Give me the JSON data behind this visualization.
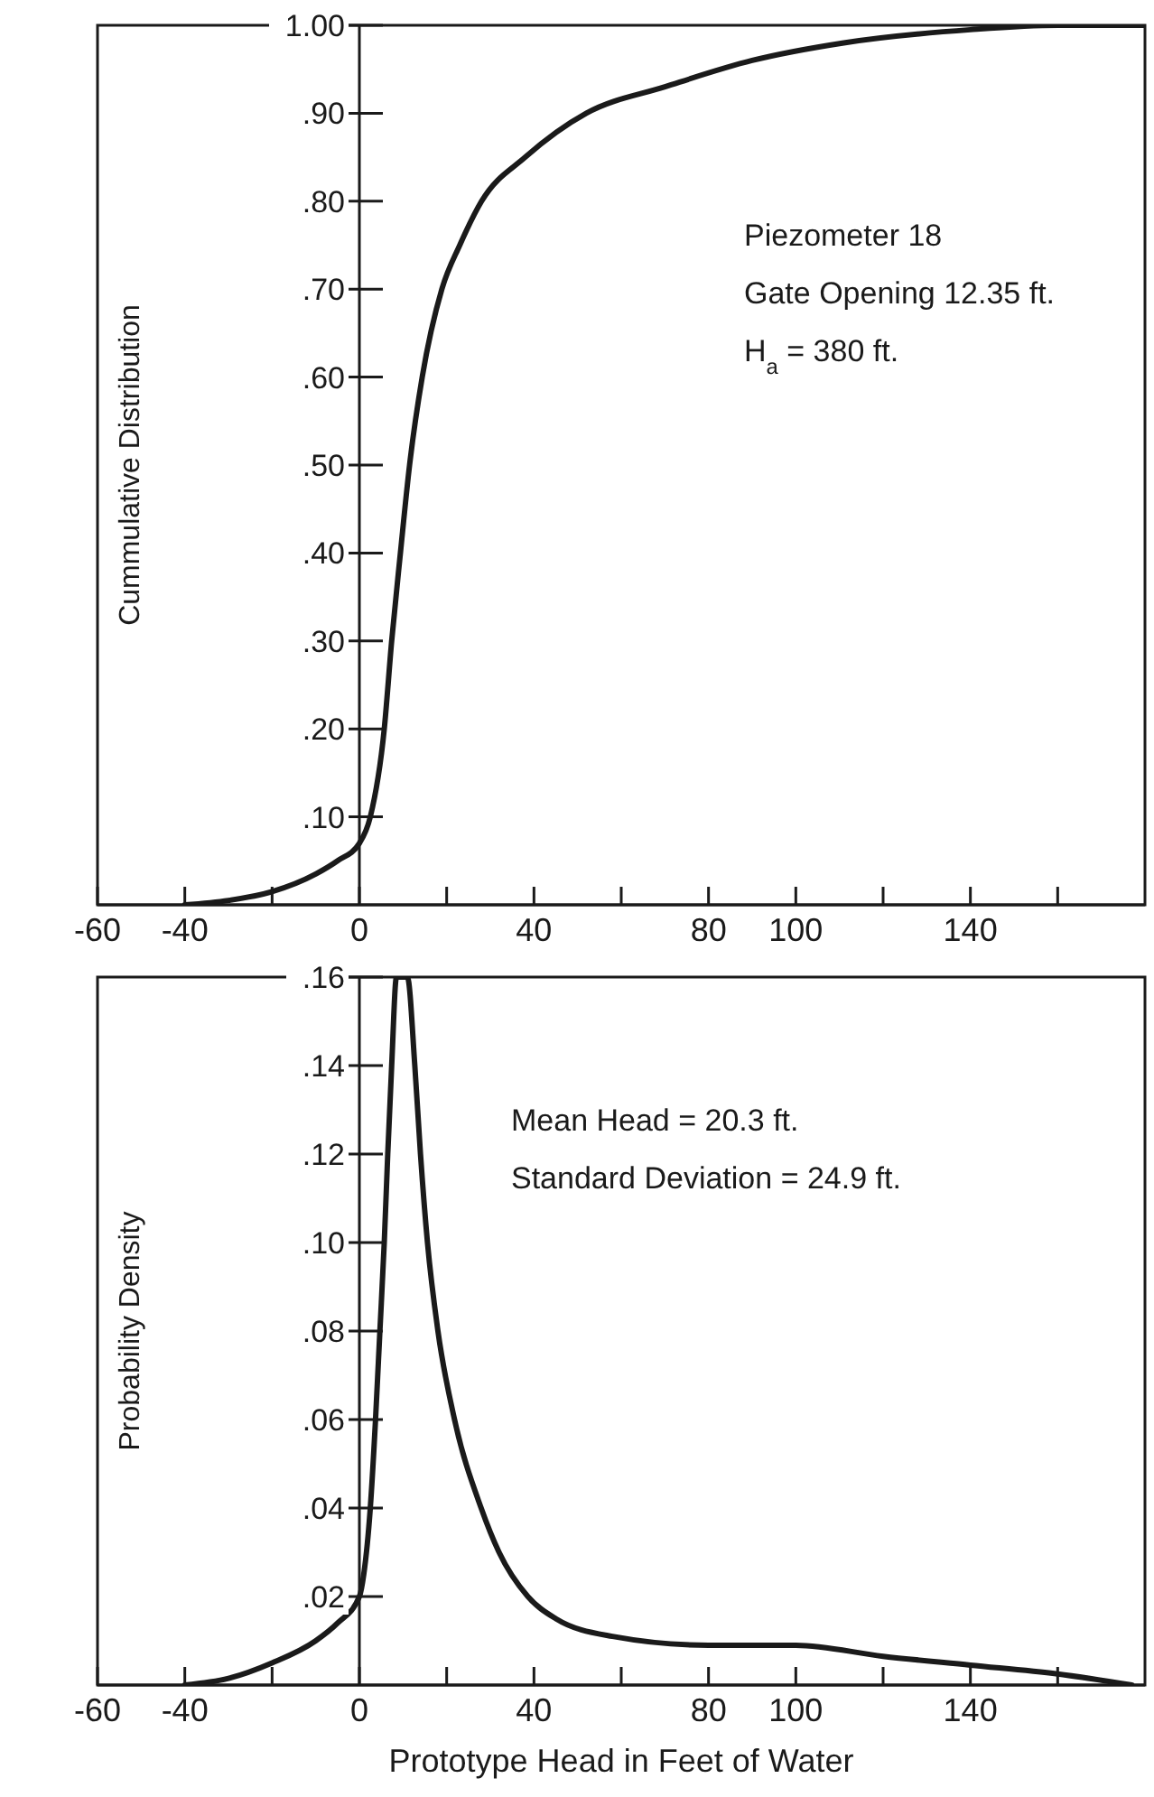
{
  "chart_data": [
    {
      "type": "line",
      "ylabel": "Cummulative Distribution",
      "color": "#1a1a1a",
      "annotations": [
        "Piezometer 18",
        "Gate Opening 12.35 ft.",
        "H$_{a}$ = 380 ft."
      ],
      "xlim": [
        -60,
        180
      ],
      "xticks": [
        -60,
        -40,
        {
          "value": -20,
          "label": null
        },
        0,
        {
          "value": 20,
          "label": null
        },
        40,
        {
          "value": 60,
          "label": null
        },
        80,
        100,
        {
          "value": 120,
          "label": null
        },
        140,
        {
          "value": 160,
          "label": null
        }
      ],
      "ylim": [
        0,
        1
      ],
      "yticks": [
        {
          "value": 0.1,
          "label": ".10"
        },
        {
          "value": 0.2,
          "label": ".20"
        },
        {
          "value": 0.3,
          "label": ".30"
        },
        {
          "value": 0.4,
          "label": ".40"
        },
        {
          "value": 0.5,
          "label": ".50"
        },
        {
          "value": 0.6,
          "label": ".60"
        },
        {
          "value": 0.7,
          "label": ".70"
        },
        {
          "value": 0.8,
          "label": ".80"
        },
        {
          "value": 0.9,
          "label": ".90"
        },
        {
          "value": 1,
          "label": "1.00"
        }
      ],
      "x": [
        -40,
        -30,
        -20,
        -10,
        -5,
        0,
        2.5,
        5.7,
        7.4,
        9.4,
        11.5,
        14.4,
        18.9,
        23,
        28,
        38,
        52,
        70,
        90,
        111,
        140,
        160,
        180
      ],
      "values": [
        0,
        0.005,
        0.015,
        0.035,
        0.05,
        0.07,
        0.1,
        0.2,
        0.3,
        0.4,
        0.5,
        0.6,
        0.7,
        0.75,
        0.8,
        0.85,
        0.9,
        0.93,
        0.96,
        0.98,
        0.995,
        1,
        1
      ]
    },
    {
      "type": "line",
      "ylabel": "Probability Density",
      "xlabel": "Prototype Head in Feet of Water",
      "color": "#1a1a1a",
      "annotations": [
        "Mean Head = 20.3 ft.",
        "Standard Deviation = 24.9 ft."
      ],
      "xlim": [
        -60,
        180
      ],
      "xticks": [
        -60,
        -40,
        {
          "value": -20,
          "label": null
        },
        0,
        {
          "value": 20,
          "label": null
        },
        40,
        {
          "value": 60,
          "label": null
        },
        80,
        100,
        {
          "value": 120,
          "label": null
        },
        140,
        {
          "value": 160,
          "label": null
        }
      ],
      "ylim": [
        0,
        0.16
      ],
      "yticks": [
        {
          "value": 0.02,
          "label": ".02"
        },
        {
          "value": 0.04,
          "label": ".04"
        },
        {
          "value": 0.06,
          "label": ".06"
        },
        {
          "value": 0.08,
          "label": ".08"
        },
        {
          "value": 0.1,
          "label": ".10"
        },
        {
          "value": 0.12,
          "label": ".12"
        },
        {
          "value": 0.14,
          "label": ".14"
        },
        {
          "value": 0.16,
          "label": ".16"
        }
      ],
      "x": [
        -40,
        -30,
        -20,
        -10,
        -5,
        0,
        1,
        2.5,
        3.7,
        4.7,
        5.7,
        6.5,
        7.4,
        8.5,
        11,
        12.7,
        14,
        15.6,
        18,
        21.8,
        27.9,
        32,
        38.6,
        45,
        58,
        80,
        100,
        120,
        140,
        160,
        177
      ],
      "values": [
        0,
        0.0015,
        0.005,
        0.01,
        0.014,
        0.02,
        0.025,
        0.04,
        0.06,
        0.08,
        0.1,
        0.12,
        0.14,
        0.16,
        0.16,
        0.14,
        0.12,
        0.1,
        0.08,
        0.06,
        0.04,
        0.03,
        0.02,
        0.015,
        0.011,
        0.009,
        0.009,
        0.0065,
        0.0045,
        0.0025,
        0
      ]
    }
  ]
}
